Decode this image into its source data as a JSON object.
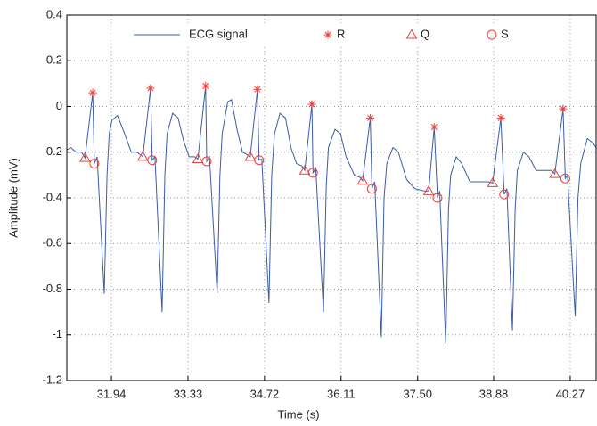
{
  "chart_data": {
    "type": "line",
    "x_label": "Time (s)",
    "y_label": "Amplitude (mV)",
    "xlim": [
      31.13,
      40.74
    ],
    "ylim": [
      -1.2,
      0.4
    ],
    "xticks": [
      31.94,
      33.33,
      34.72,
      36.11,
      {
        "value": 37.5,
        "label": "37.50"
      },
      38.88,
      40.27
    ],
    "yticks": [
      0.4,
      0.2,
      0,
      -0.2,
      -0.4,
      -0.6,
      -0.8,
      -1,
      -1.2
    ],
    "grid": true,
    "legend": "top",
    "series": [
      {
        "name": "ECG signal",
        "color": "#3b5ca8",
        "marker": "none",
        "x": [
          31.13,
          31.2,
          31.3,
          31.4,
          31.46,
          31.6,
          31.63,
          31.68,
          31.81,
          31.86,
          31.9,
          31.95,
          32.05,
          32.15,
          32.3,
          32.4,
          32.51,
          32.65,
          32.68,
          32.73,
          32.86,
          32.91,
          32.95,
          33.05,
          33.15,
          33.25,
          33.35,
          33.45,
          33.51,
          33.65,
          33.67,
          33.72,
          33.86,
          33.91,
          33.95,
          34.05,
          34.12,
          34.22,
          34.32,
          34.4,
          34.46,
          34.59,
          34.62,
          34.67,
          34.8,
          34.85,
          34.9,
          35.0,
          35.1,
          35.2,
          35.3,
          35.4,
          35.45,
          35.58,
          35.6,
          35.65,
          35.79,
          35.84,
          35.88,
          36.0,
          36.1,
          36.2,
          36.35,
          36.45,
          36.5,
          36.64,
          36.67,
          36.72,
          36.84,
          36.89,
          36.94,
          37.05,
          37.15,
          37.3,
          37.45,
          37.62,
          37.7,
          37.8,
          37.86,
          37.9,
          38.01,
          38.06,
          38.1,
          38.2,
          38.3,
          38.45,
          38.6,
          38.78,
          38.86,
          39.01,
          39.07,
          39.12,
          39.22,
          39.27,
          39.31,
          39.42,
          39.52,
          39.65,
          39.8,
          39.92,
          39.99,
          40.14,
          40.18,
          40.22,
          40.36,
          40.41,
          40.46,
          40.58,
          40.68,
          40.74
        ],
        "values": [
          -0.19,
          -0.18,
          -0.2,
          -0.2,
          -0.225,
          0.06,
          -0.25,
          -0.22,
          -0.82,
          -0.3,
          -0.12,
          -0.06,
          -0.04,
          -0.1,
          -0.2,
          -0.2,
          -0.22,
          0.08,
          -0.235,
          -0.22,
          -0.9,
          -0.3,
          -0.12,
          -0.03,
          -0.05,
          -0.15,
          -0.22,
          -0.22,
          -0.23,
          0.09,
          -0.24,
          -0.22,
          -0.82,
          -0.3,
          -0.12,
          0.02,
          0.03,
          -0.1,
          -0.2,
          -0.21,
          -0.22,
          0.075,
          -0.235,
          -0.23,
          -0.86,
          -0.3,
          -0.12,
          -0.03,
          -0.05,
          -0.18,
          -0.25,
          -0.26,
          -0.28,
          0.01,
          -0.29,
          -0.27,
          -0.9,
          -0.35,
          -0.18,
          -0.1,
          -0.12,
          -0.22,
          -0.3,
          -0.31,
          -0.325,
          -0.05,
          -0.36,
          -0.33,
          -1.01,
          -0.4,
          -0.25,
          -0.18,
          -0.2,
          -0.32,
          -0.36,
          -0.37,
          -0.37,
          -0.09,
          -0.4,
          -0.37,
          -1.04,
          -0.45,
          -0.3,
          -0.22,
          -0.25,
          -0.33,
          -0.33,
          -0.33,
          -0.335,
          -0.05,
          -0.385,
          -0.36,
          -0.98,
          -0.45,
          -0.28,
          -0.2,
          -0.22,
          -0.28,
          -0.28,
          -0.28,
          -0.295,
          -0.01,
          -0.315,
          -0.3,
          -0.92,
          -0.4,
          -0.25,
          -0.14,
          -0.16,
          -0.18
        ]
      },
      {
        "name": "R",
        "color": "#e8403a",
        "marker": "star",
        "x": [
          31.6,
          32.65,
          33.65,
          34.59,
          35.58,
          36.64,
          37.8,
          39.01,
          40.14
        ],
        "values": [
          0.06,
          0.08,
          0.09,
          0.075,
          0.01,
          -0.05,
          -0.09,
          -0.05,
          -0.01
        ]
      },
      {
        "name": "Q",
        "color": "#e8403a",
        "marker": "triangle",
        "x": [
          31.46,
          32.51,
          33.51,
          34.46,
          35.45,
          36.5,
          37.7,
          38.86,
          39.99
        ],
        "values": [
          -0.225,
          -0.22,
          -0.23,
          -0.22,
          -0.28,
          -0.325,
          -0.37,
          -0.335,
          -0.295
        ]
      },
      {
        "name": "S",
        "color": "#e8403a",
        "marker": "circle",
        "x": [
          31.63,
          32.68,
          33.67,
          34.62,
          35.6,
          36.67,
          37.86,
          39.07,
          40.18
        ],
        "values": [
          -0.25,
          -0.235,
          -0.24,
          -0.235,
          -0.29,
          -0.36,
          -0.4,
          -0.385,
          -0.315
        ]
      }
    ]
  }
}
